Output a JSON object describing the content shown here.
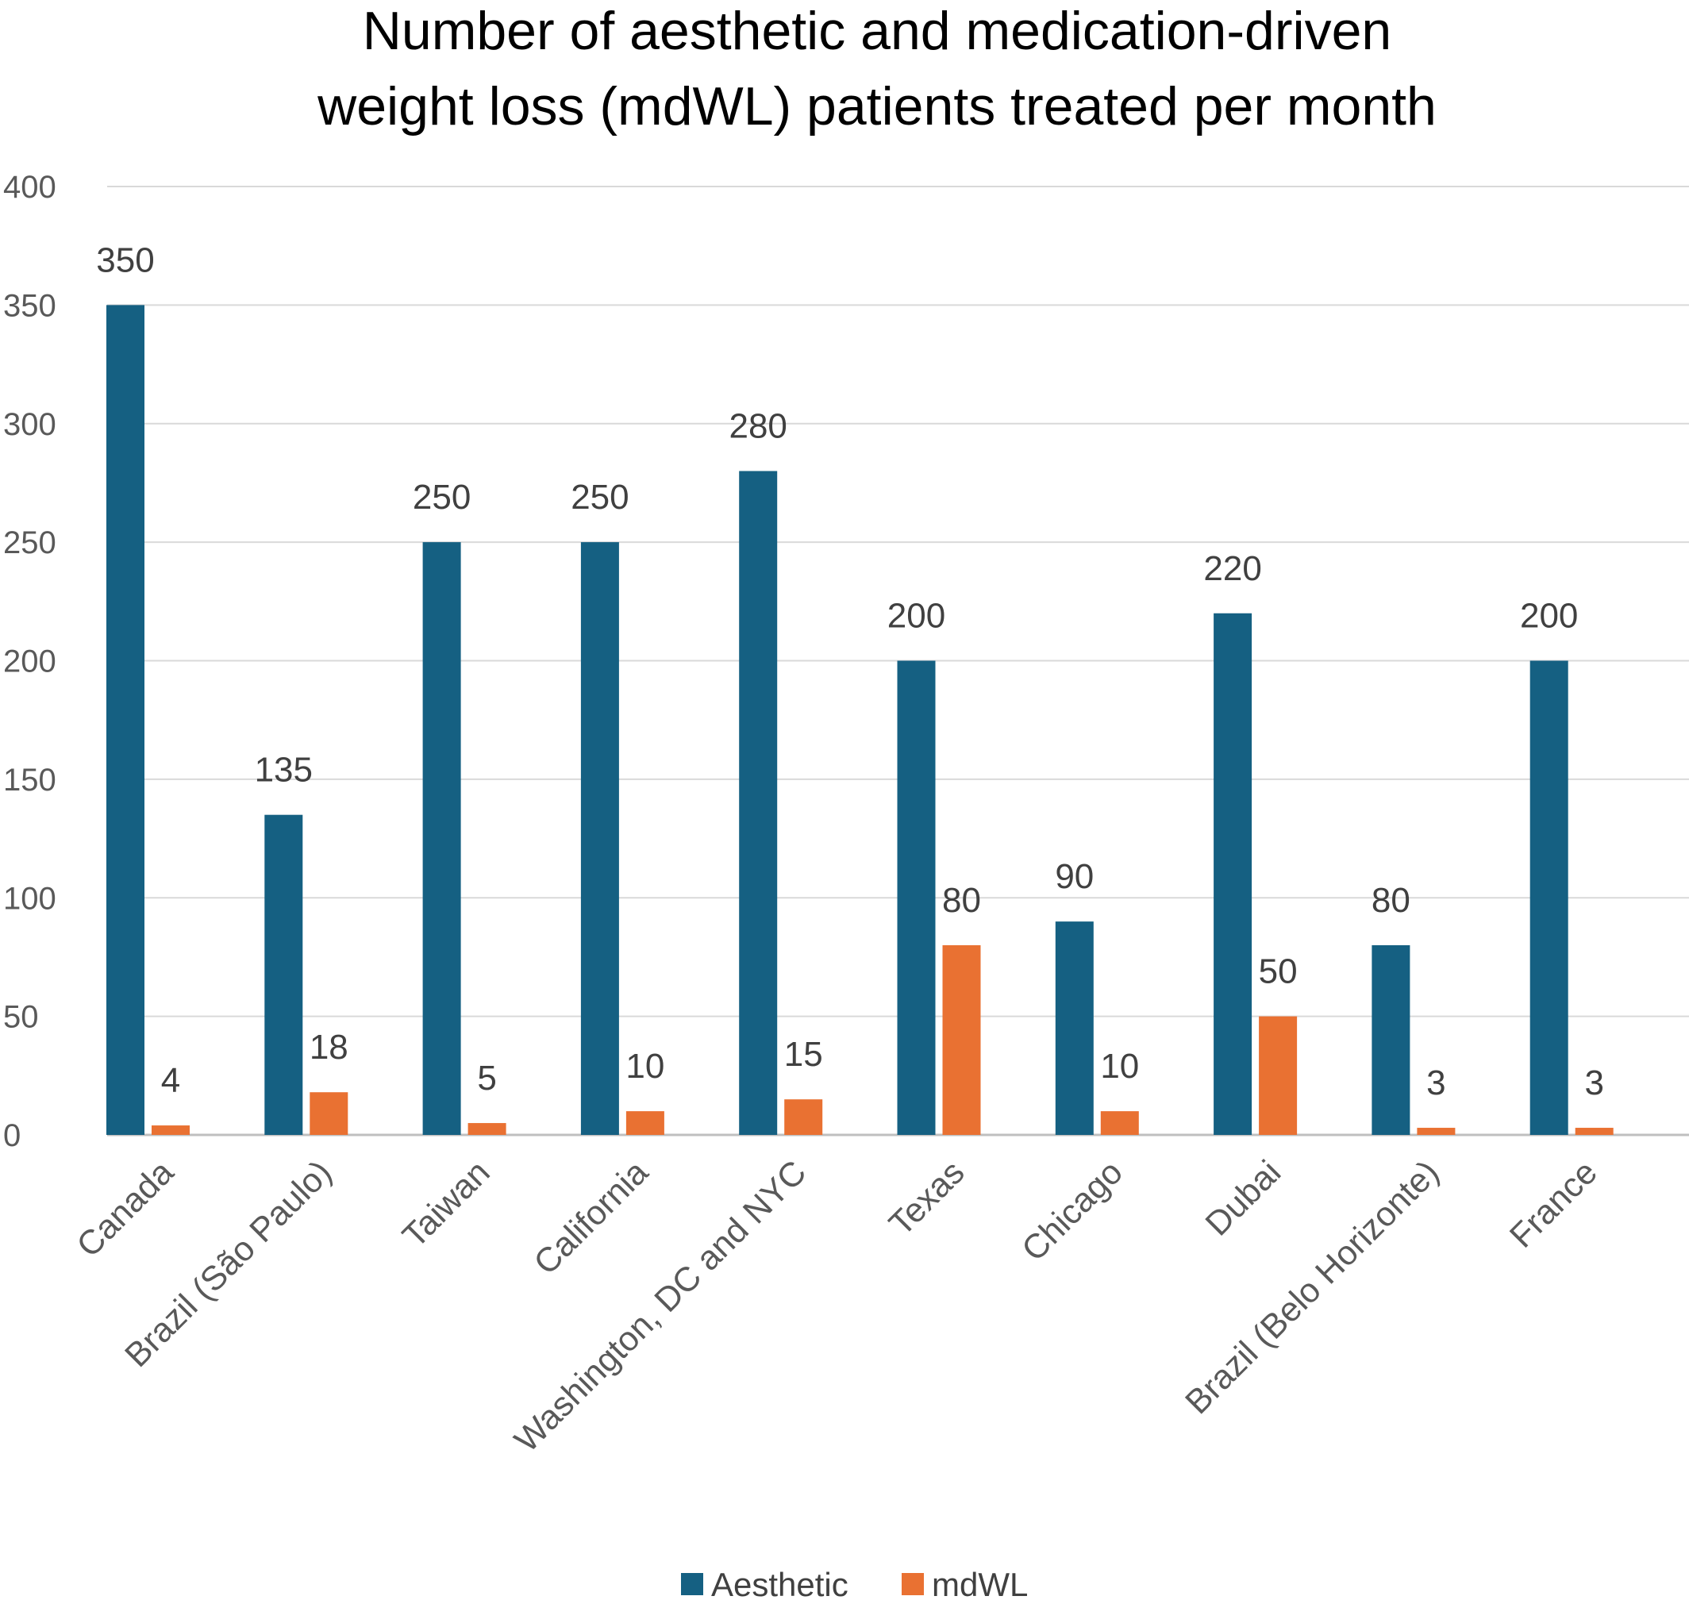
{
  "chart_data": {
    "type": "bar",
    "title_lines": [
      "Number of aesthetic and medication-driven",
      "weight loss (mdWL) patients treated per month"
    ],
    "categories": [
      "Canada",
      "Brazil (São Paulo)",
      "Taiwan",
      "California",
      "Washington, DC and NYC",
      "Texas",
      "Chicago",
      "Dubai",
      "Brazil (Belo Horizonte)",
      "France"
    ],
    "series": [
      {
        "name": "Aesthetic",
        "color": "#156082",
        "values": [
          350,
          135,
          250,
          250,
          280,
          200,
          90,
          220,
          80,
          200
        ]
      },
      {
        "name": "mdWL",
        "color": "#E97132",
        "values": [
          4,
          18,
          5,
          10,
          15,
          80,
          10,
          50,
          3,
          3
        ]
      }
    ],
    "ylim": [
      0,
      400
    ],
    "yticks": [
      0,
      50,
      100,
      150,
      200,
      250,
      300,
      350,
      400
    ],
    "grid": true,
    "legend_position": "bottom",
    "data_labels": true
  }
}
